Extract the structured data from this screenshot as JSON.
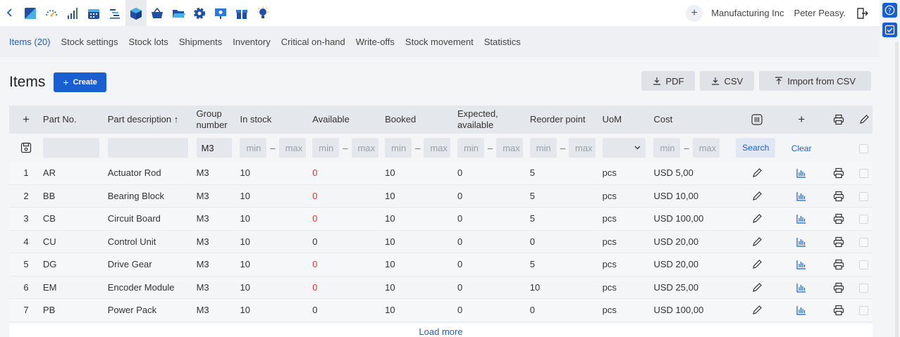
{
  "topbar": {
    "back_icon": "chevron-left-icon",
    "apps": [
      {
        "icon": "dashboard-icon"
      },
      {
        "icon": "speedometer-icon"
      },
      {
        "icon": "bar-chart-icon"
      },
      {
        "icon": "calendar-icon"
      },
      {
        "icon": "gantt-icon"
      },
      {
        "icon": "cube-icon",
        "active": true
      },
      {
        "icon": "basket-icon"
      },
      {
        "icon": "folder-icon"
      },
      {
        "icon": "gear-icon"
      },
      {
        "icon": "presentation-icon"
      },
      {
        "icon": "gift-icon"
      },
      {
        "icon": "lightbulb-icon"
      }
    ],
    "add_icon": "plus-icon",
    "company": "Manufacturing Inc",
    "user": "Peter Peasy.",
    "logout_icon": "exit-icon"
  },
  "side": {
    "help_icon": "question-icon",
    "tasks_icon": "checkbox-icon"
  },
  "tabs": [
    "Items (20)",
    "Stock settings",
    "Stock lots",
    "Shipments",
    "Inventory",
    "Critical on-hand",
    "Write-offs",
    "Stock movement",
    "Statistics"
  ],
  "heading": {
    "title": "Items",
    "create_label": "Create"
  },
  "actions": {
    "pdf": "PDF",
    "csv": "CSV",
    "import": "Import from CSV"
  },
  "columns": {
    "add": "+",
    "part_no": "Part No.",
    "description": "Part description ↑",
    "group": "Group number",
    "in_stock": "In stock",
    "available": "Available",
    "booked": "Booked",
    "expected": "Expected, available",
    "reorder": "Reorder point",
    "uom": "UoM",
    "cost": "Cost"
  },
  "filters": {
    "group_value": "M3",
    "min_placeholder": "min",
    "max_placeholder": "max",
    "dash": "–",
    "search": "Search",
    "clear": "Clear"
  },
  "rows": [
    {
      "n": "1",
      "part": "AR",
      "desc": "Actuator Rod",
      "group": "M3",
      "in_stock": "10",
      "available": "0",
      "available_red": true,
      "booked": "10",
      "expected": "0",
      "reorder": "5",
      "uom": "pcs",
      "cost": "USD 5,00"
    },
    {
      "n": "2",
      "part": "BB",
      "desc": "Bearing Block",
      "group": "M3",
      "in_stock": "10",
      "available": "0",
      "available_red": true,
      "booked": "10",
      "expected": "0",
      "reorder": "5",
      "uom": "pcs",
      "cost": "USD 10,00"
    },
    {
      "n": "3",
      "part": "CB",
      "desc": "Circuit Board",
      "group": "M3",
      "in_stock": "10",
      "available": "0",
      "available_red": true,
      "booked": "10",
      "expected": "0",
      "reorder": "5",
      "uom": "pcs",
      "cost": "USD 100,00"
    },
    {
      "n": "4",
      "part": "CU",
      "desc": "Control Unit",
      "group": "M3",
      "in_stock": "10",
      "available": "0",
      "available_red": false,
      "booked": "10",
      "expected": "0",
      "reorder": "0",
      "uom": "pcs",
      "cost": "USD 20,00"
    },
    {
      "n": "5",
      "part": "DG",
      "desc": "Drive Gear",
      "group": "M3",
      "in_stock": "10",
      "available": "0",
      "available_red": true,
      "booked": "10",
      "expected": "0",
      "reorder": "5",
      "uom": "pcs",
      "cost": "USD 20,00"
    },
    {
      "n": "6",
      "part": "EM",
      "desc": "Encoder Module",
      "group": "M3",
      "in_stock": "10",
      "available": "0",
      "available_red": true,
      "booked": "10",
      "expected": "0",
      "reorder": "10",
      "uom": "pcs",
      "cost": "USD 25,00"
    },
    {
      "n": "7",
      "part": "PB",
      "desc": "Power Pack",
      "group": "M3",
      "in_stock": "10",
      "available": "0",
      "available_red": false,
      "booked": "10",
      "expected": "0",
      "reorder": "0",
      "uom": "pcs",
      "cost": "USD 100,00"
    }
  ],
  "load_more": "Load more",
  "colors": {
    "accent": "#1a5fd1",
    "negative": "#e53935"
  }
}
